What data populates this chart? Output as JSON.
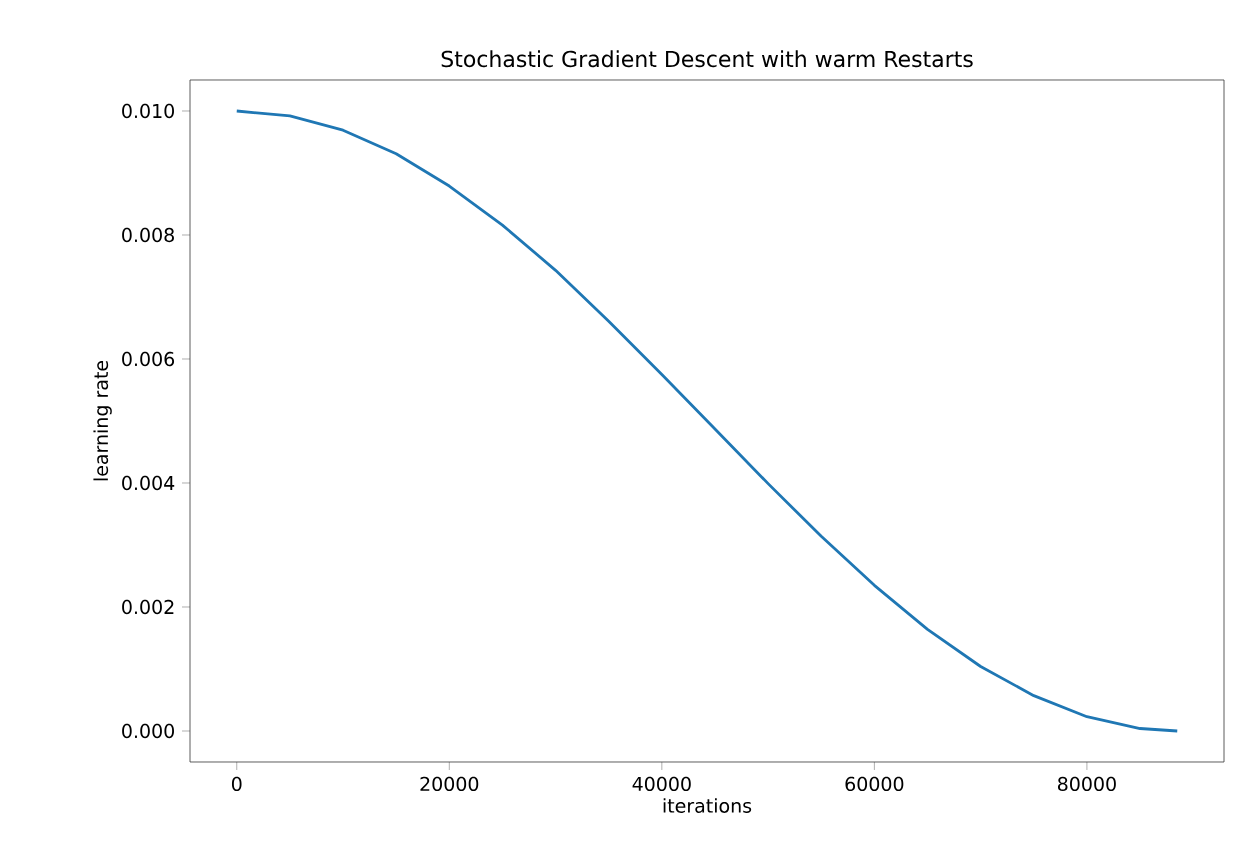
{
  "chart_data": {
    "type": "line",
    "title": "Stochastic Gradient Descent with warm Restarts",
    "xlabel": "iterations",
    "ylabel": "learning rate",
    "x": [
      0,
      5000,
      10000,
      15000,
      20000,
      25000,
      30000,
      35000,
      40000,
      45000,
      50000,
      55000,
      60000,
      65000,
      70000,
      75000,
      80000,
      85000,
      88500
    ],
    "values": [
      0.01,
      0.00992,
      0.00969,
      0.00931,
      0.00879,
      0.00816,
      0.00743,
      0.00661,
      0.00575,
      0.00487,
      0.00399,
      0.00314,
      0.00235,
      0.00164,
      0.00104,
      0.00057,
      0.00023,
      4e-05,
      0.0
    ],
    "color": "#1f77b4",
    "xlim": [
      -4400,
      92900
    ],
    "ylim": [
      -0.0005,
      0.0105
    ],
    "xticks": [
      0,
      20000,
      40000,
      60000,
      80000
    ],
    "yticks": [
      {
        "value": 0,
        "label": "0.000"
      },
      {
        "value": 0.002,
        "label": "0.002"
      },
      {
        "value": 0.004,
        "label": "0.004"
      },
      {
        "value": 0.006,
        "label": "0.006"
      },
      {
        "value": 0.008,
        "label": "0.008"
      },
      {
        "value": 0.01,
        "label": "0.010"
      }
    ]
  }
}
